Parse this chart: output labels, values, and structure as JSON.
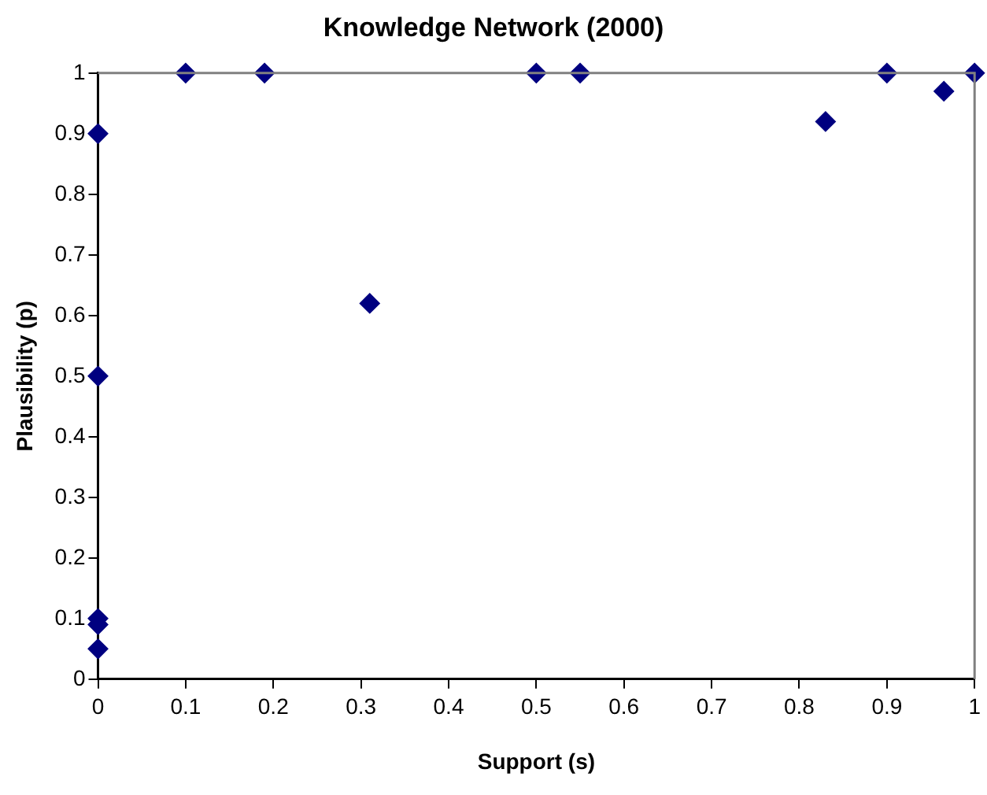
{
  "chart_data": {
    "type": "scatter",
    "title": "Knowledge Network (2000)",
    "xlabel": "Support (s)",
    "ylabel": "Plausibility (p)",
    "x": [
      0,
      0,
      0,
      0,
      0,
      0.1,
      0.19,
      0.31,
      0.5,
      0.55,
      0.83,
      0.9,
      0.965,
      1
    ],
    "series": [
      {
        "color": "#000080",
        "values": [
          0.9,
          0.5,
          0.1,
          0.09,
          0.05,
          1,
          1,
          0.62,
          1,
          1,
          0.92,
          1,
          0.97,
          1
        ]
      }
    ],
    "xlim": [
      0,
      1
    ],
    "xticks": [
      0,
      0.1,
      0.2,
      0.3,
      0.4,
      0.5,
      0.6,
      0.7,
      0.8,
      0.9,
      1
    ],
    "ylim": [
      0,
      1
    ],
    "yticks": [
      0,
      0.1,
      0.2,
      0.3,
      0.4,
      0.5,
      0.6,
      0.7,
      0.8,
      0.9,
      1
    ],
    "grid": false,
    "legend": false,
    "marker": "diamond"
  }
}
